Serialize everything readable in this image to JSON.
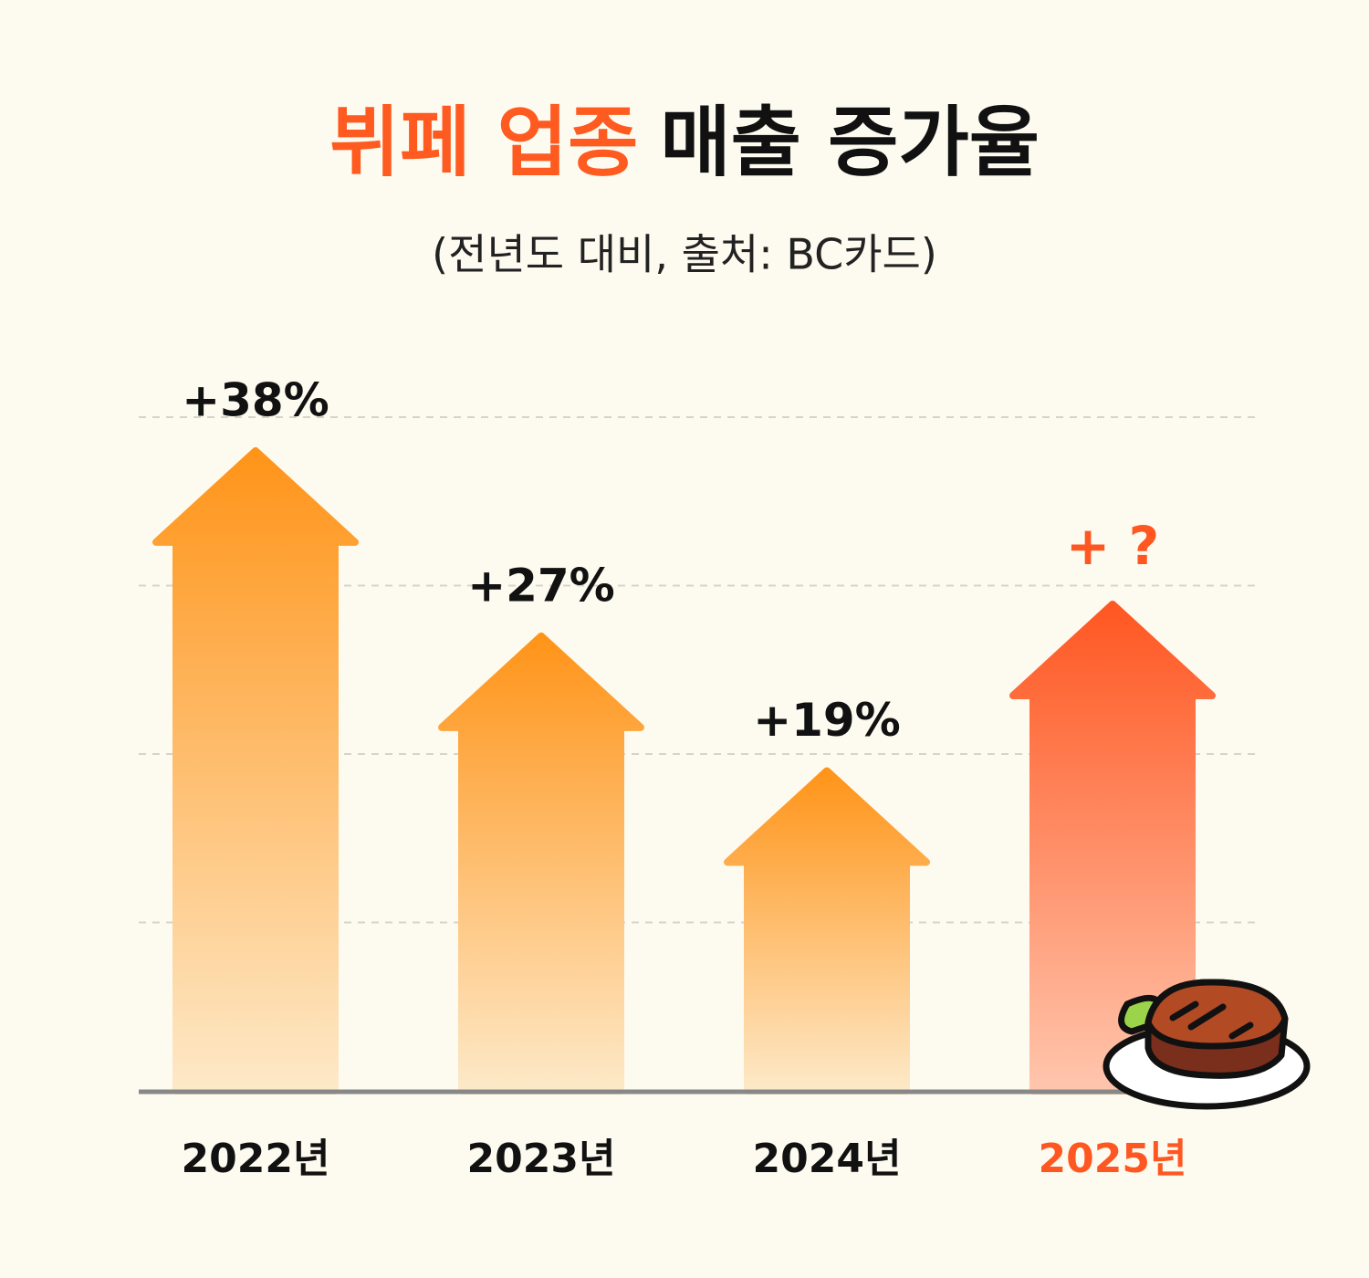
{
  "chart_data": {
    "type": "bar",
    "title_highlight": "뷔페 업종",
    "title": "매출 증가율",
    "subtitle": "(전년도 대비, 출처: BC카드)",
    "categories": [
      "2022년",
      "2023년",
      "2024년",
      "2025년"
    ],
    "values": [
      38,
      27,
      19,
      null
    ],
    "value_labels": [
      "+38%",
      "+27%",
      "+19%",
      "+ ?"
    ],
    "color": "#ff9419",
    "highlight_color": "#ff5722",
    "ylim": [
      0,
      40
    ],
    "yticks": [
      10,
      20,
      30,
      40
    ],
    "grid": true
  }
}
